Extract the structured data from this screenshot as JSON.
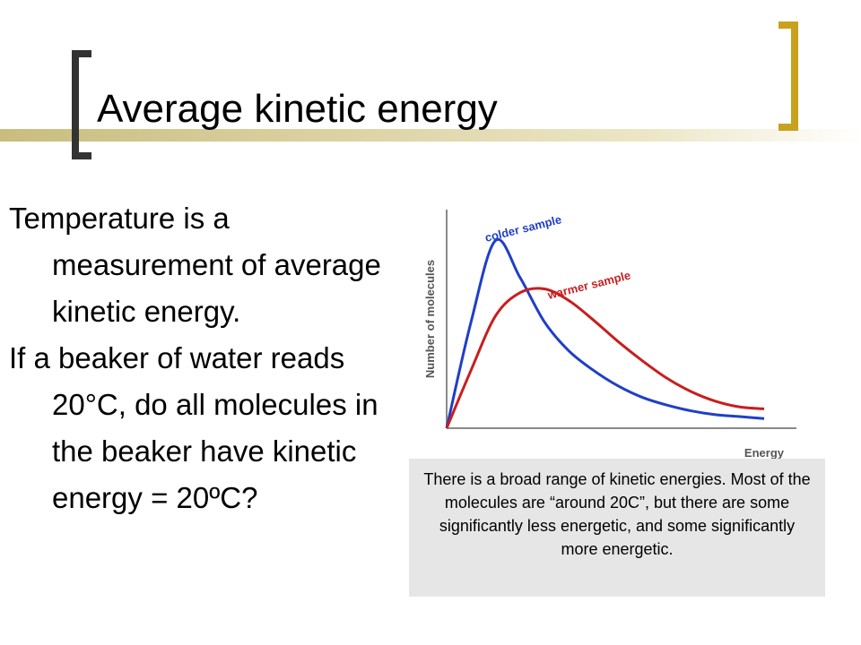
{
  "slide": {
    "title": "Average kinetic energy",
    "paragraphs": [
      "Temperature is a measurement of average kinetic energy.",
      "If a beaker of water reads 20°C, do all molecules in the beaker have kinetic energy = 20ºC?"
    ],
    "caption": "There is a broad range of kinetic energies.  Most of the molecules are “around 20C”, but there are some significantly less energetic, and some significantly more energetic."
  },
  "colors": {
    "accent_gold": "#c8a21e",
    "bracket_dark": "#333333",
    "colder_series": "#1f3fc7",
    "warmer_series": "#c81e1e",
    "caption_bg": "#e6e6e6"
  },
  "chart_data": {
    "type": "line",
    "xlabel": "Energy",
    "ylabel": "Number of molecules",
    "grid": false,
    "series": [
      {
        "name": "colder sample",
        "color": "#1f3fc7",
        "values": [
          0,
          0.55,
          0.97,
          0.78,
          0.55,
          0.4,
          0.3,
          0.22,
          0.16,
          0.12,
          0.09,
          0.07,
          0.06,
          0.05
        ]
      },
      {
        "name": "warmer sample",
        "color": "#c81e1e",
        "values": [
          0,
          0.3,
          0.58,
          0.7,
          0.72,
          0.66,
          0.56,
          0.45,
          0.35,
          0.26,
          0.19,
          0.14,
          0.11,
          0.1
        ]
      }
    ]
  }
}
